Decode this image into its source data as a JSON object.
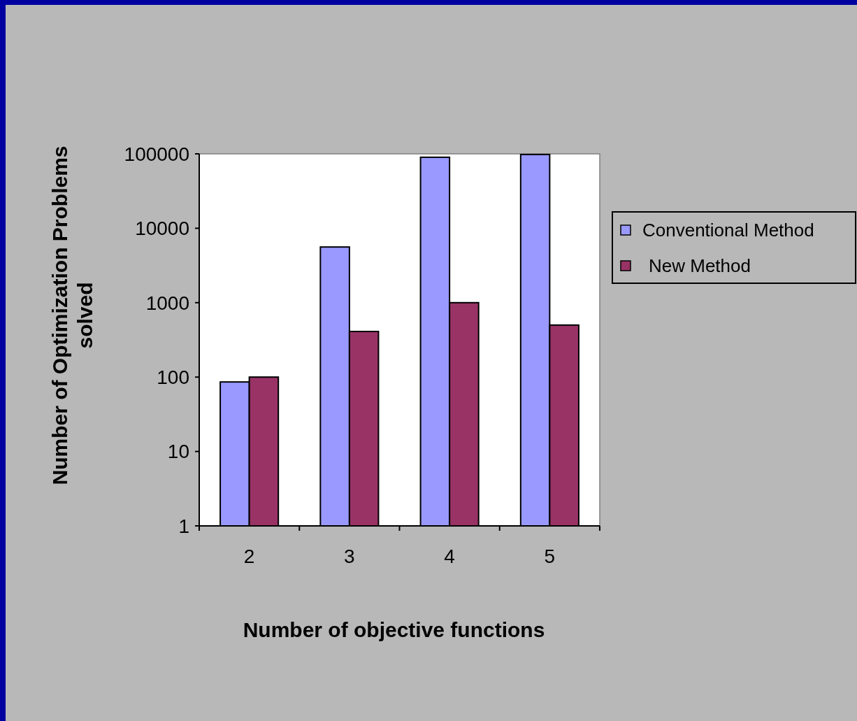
{
  "chart_data": {
    "type": "bar",
    "xlabel": "Number of objective functions",
    "ylabel": "Number of Optimization Problems solved",
    "categories": [
      "2",
      "3",
      "4",
      "5"
    ],
    "series": [
      {
        "name": "Conventional Method",
        "color": "#9999ff",
        "values": [
          86,
          5600,
          90000,
          98000
        ]
      },
      {
        "name": "New Method",
        "color": "#993366",
        "values": [
          100,
          410,
          1000,
          500
        ]
      }
    ],
    "log": "y",
    "ylim": [
      1,
      100000
    ],
    "yticks": [
      1,
      10,
      100,
      1000,
      10000,
      100000
    ],
    "legend": "right"
  }
}
